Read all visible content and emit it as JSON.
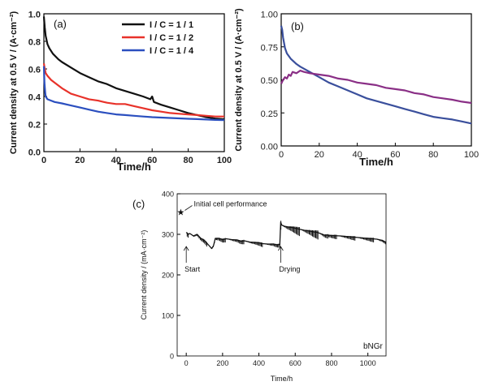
{
  "chart_data": [
    {
      "panel_label": "(a)",
      "type": "line",
      "xlabel": "Time/h",
      "ylabel": "Current density at 0.5 V / (A·cm⁻²)",
      "xlim": [
        0,
        100
      ],
      "ylim": [
        0,
        1.0
      ],
      "xticks": [
        0,
        20,
        40,
        60,
        80,
        100
      ],
      "yticks": [
        0.0,
        0.2,
        0.4,
        0.6,
        0.8,
        1.0
      ],
      "xtick_labels": [
        "0",
        "20",
        "40",
        "60",
        "80",
        "100"
      ],
      "ytick_labels": [
        "0.0",
        "0.2",
        "0.4",
        "0.6",
        "0.8",
        "1.0"
      ],
      "legend": "top-right",
      "series": [
        {
          "name": "I / C = 1 / 1",
          "color": "#111111",
          "x": [
            0,
            0.5,
            1,
            2,
            3,
            5,
            8,
            10,
            15,
            20,
            25,
            30,
            35,
            40,
            45,
            50,
            55,
            59,
            60,
            61,
            65,
            70,
            75,
            80,
            85,
            90,
            95,
            100
          ],
          "y": [
            0.98,
            0.9,
            0.84,
            0.78,
            0.75,
            0.71,
            0.67,
            0.65,
            0.61,
            0.57,
            0.54,
            0.51,
            0.49,
            0.46,
            0.44,
            0.42,
            0.4,
            0.38,
            0.4,
            0.36,
            0.34,
            0.32,
            0.3,
            0.28,
            0.265,
            0.25,
            0.24,
            0.235
          ]
        },
        {
          "name": "I / C = 1 / 2",
          "color": "#e8322a",
          "x": [
            0,
            0.5,
            1,
            2,
            4,
            6,
            10,
            15,
            20,
            25,
            30,
            35,
            40,
            45,
            50,
            55,
            60,
            65,
            70,
            75,
            80,
            85,
            90,
            95,
            100
          ],
          "y": [
            0.64,
            0.6,
            0.57,
            0.55,
            0.52,
            0.5,
            0.46,
            0.42,
            0.4,
            0.38,
            0.37,
            0.355,
            0.345,
            0.345,
            0.33,
            0.315,
            0.3,
            0.29,
            0.28,
            0.275,
            0.27,
            0.265,
            0.26,
            0.255,
            0.255
          ]
        },
        {
          "name": "I / C = 1 / 4",
          "color": "#2b4fbf",
          "x": [
            0,
            0.3,
            0.7,
            1,
            2,
            4,
            6,
            10,
            15,
            20,
            25,
            30,
            35,
            40,
            45,
            50,
            55,
            60,
            65,
            70,
            75,
            80,
            85,
            90,
            95,
            100
          ],
          "y": [
            0.62,
            0.5,
            0.43,
            0.4,
            0.38,
            0.37,
            0.36,
            0.35,
            0.335,
            0.32,
            0.305,
            0.29,
            0.28,
            0.27,
            0.265,
            0.26,
            0.255,
            0.25,
            0.247,
            0.244,
            0.241,
            0.238,
            0.236,
            0.233,
            0.23,
            0.228
          ]
        }
      ]
    },
    {
      "panel_label": "(b)",
      "type": "line",
      "xlabel": "Time/h",
      "ylabel": "Current density at 0.5 V / (A·cm⁻²)",
      "xlim": [
        0,
        100
      ],
      "ylim": [
        0,
        1.0
      ],
      "xticks": [
        0,
        20,
        40,
        60,
        80,
        100
      ],
      "yticks": [
        0.0,
        0.25,
        0.5,
        0.75,
        1.0
      ],
      "xtick_labels": [
        "0",
        "20",
        "40",
        "60",
        "80",
        "100"
      ],
      "ytick_labels": [
        "0.00",
        "0.25",
        "0.50",
        "0.75",
        "1.00"
      ],
      "series": [
        {
          "color": "#3a4f9c",
          "x": [
            0,
            0.5,
            1,
            2,
            3,
            5,
            8,
            10,
            15,
            20,
            25,
            30,
            35,
            40,
            45,
            50,
            55,
            60,
            65,
            70,
            75,
            80,
            85,
            90,
            95,
            100
          ],
          "y": [
            0.91,
            0.88,
            0.82,
            0.74,
            0.7,
            0.66,
            0.62,
            0.6,
            0.56,
            0.52,
            0.48,
            0.45,
            0.42,
            0.39,
            0.36,
            0.34,
            0.32,
            0.3,
            0.28,
            0.26,
            0.24,
            0.22,
            0.21,
            0.2,
            0.185,
            0.17
          ]
        },
        {
          "color": "#8a2f86",
          "x": [
            0,
            1,
            2,
            3,
            4,
            5,
            6,
            8,
            10,
            12,
            15,
            20,
            25,
            30,
            35,
            40,
            45,
            50,
            55,
            60,
            65,
            70,
            75,
            80,
            85,
            90,
            95,
            100
          ],
          "y": [
            0.47,
            0.5,
            0.52,
            0.51,
            0.54,
            0.53,
            0.56,
            0.55,
            0.57,
            0.56,
            0.55,
            0.54,
            0.53,
            0.51,
            0.5,
            0.48,
            0.47,
            0.46,
            0.44,
            0.43,
            0.42,
            0.4,
            0.39,
            0.37,
            0.36,
            0.35,
            0.335,
            0.325
          ]
        }
      ]
    },
    {
      "panel_label": "(c)",
      "type": "line",
      "xlabel": "Time/h",
      "ylabel": "Current density / (mA·cm⁻²)",
      "xlim": [
        -50,
        1100
      ],
      "ylim": [
        0,
        400
      ],
      "xticks": [
        0,
        200,
        400,
        600,
        800,
        1000
      ],
      "yticks": [
        0,
        100,
        200,
        300,
        400
      ],
      "xtick_labels": [
        "0",
        "200",
        "400",
        "600",
        "800",
        "1000"
      ],
      "ytick_labels": [
        "0",
        "100",
        "200",
        "300",
        "400"
      ],
      "inner_label": "bNGr",
      "initial_point": {
        "x": -30,
        "y": 355,
        "label": "Initial cell performance"
      },
      "annotations": [
        {
          "text": "Start",
          "x": 0,
          "y": 270
        },
        {
          "text": "Drying",
          "x": 520,
          "y": 270
        }
      ],
      "series": [
        {
          "color": "#111111",
          "x": [
            0,
            10,
            20,
            40,
            60,
            80,
            100,
            120,
            140,
            150,
            160,
            180,
            200,
            220,
            250,
            280,
            300,
            320,
            350,
            380,
            400,
            420,
            450,
            480,
            500,
            515,
            520,
            525,
            540,
            560,
            580,
            600,
            620,
            650,
            680,
            700,
            720,
            750,
            760,
            780,
            800,
            850,
            900,
            950,
            1000,
            1050,
            1080,
            1100
          ],
          "y": [
            305,
            300,
            302,
            296,
            300,
            290,
            285,
            275,
            265,
            272,
            290,
            290,
            287,
            289,
            287,
            286,
            283,
            284,
            281,
            280,
            279,
            277,
            276,
            276,
            274,
            275,
            330,
            323,
            320,
            318,
            317,
            315,
            313,
            310,
            308,
            306,
            305,
            300,
            298,
            298,
            297,
            296,
            294,
            292,
            290,
            288,
            285,
            280
          ]
        }
      ]
    }
  ]
}
